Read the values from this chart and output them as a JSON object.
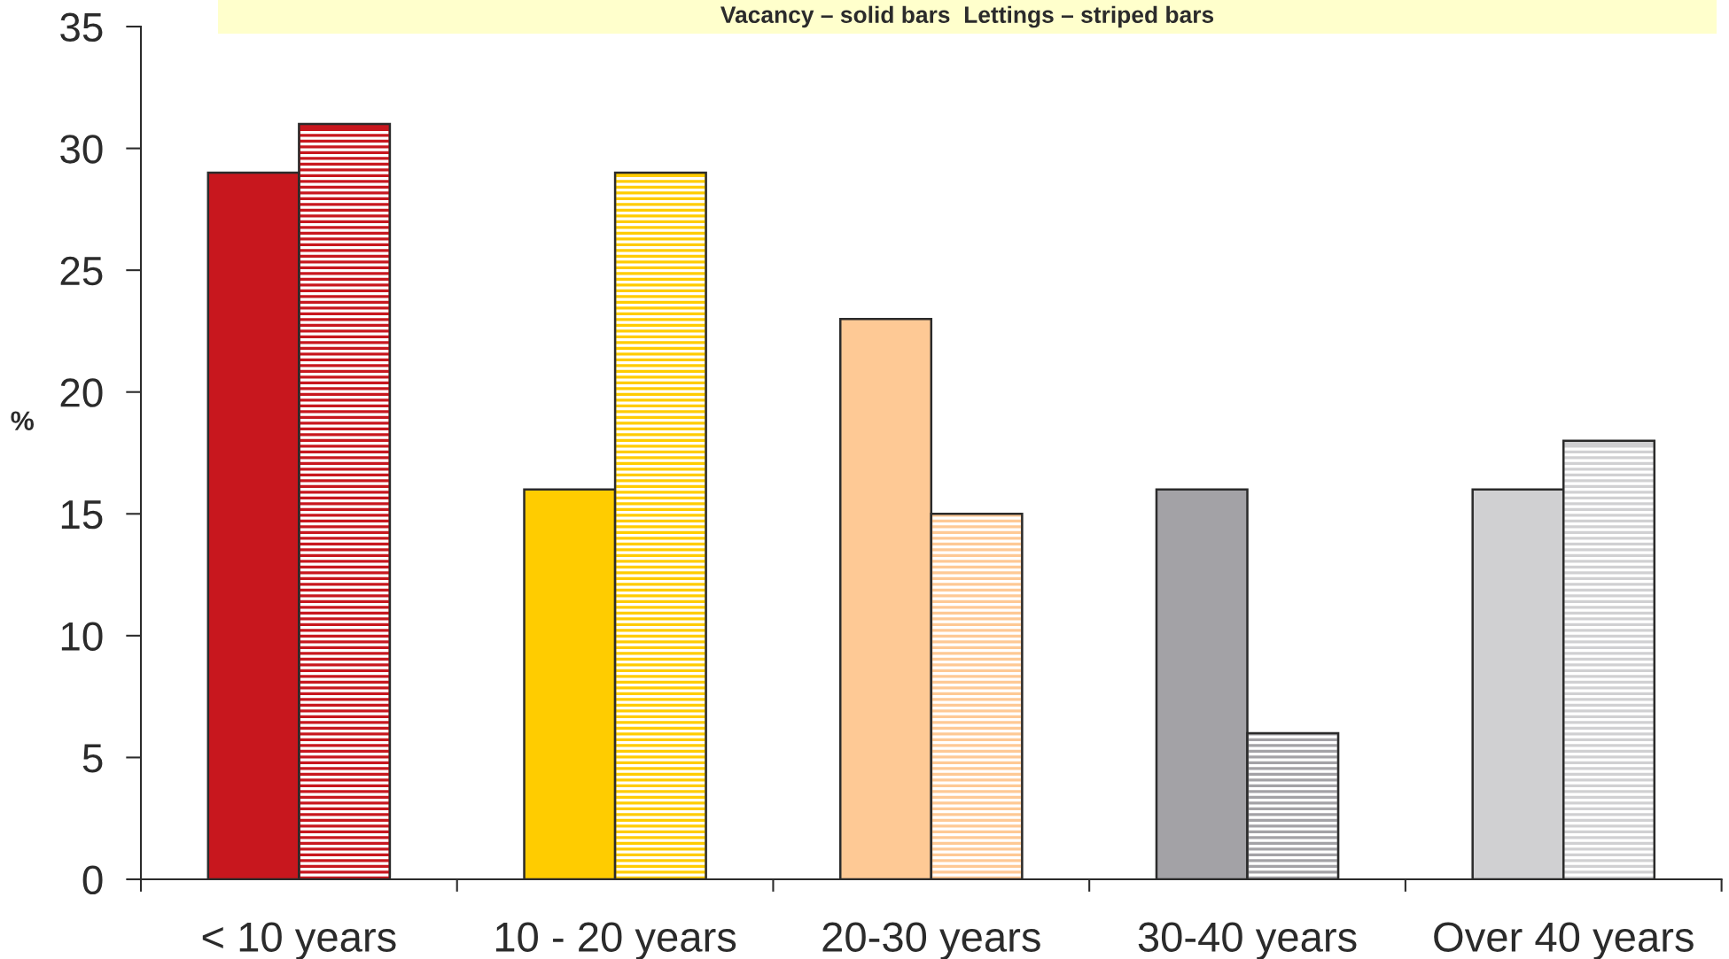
{
  "chart_data": {
    "type": "bar",
    "title": "Vacancy – solid bars  Lettings – striped bars",
    "ylabel": "%",
    "categories": [
      "< 10 years",
      "10 - 20 years",
      "20-30 years",
      "30-40 years",
      "Over 40 years"
    ],
    "series": [
      {
        "colors": [
          "#c8171e",
          "#ffcc00",
          "#fec995",
          "#a3a2a6",
          "#d0d0d2"
        ],
        "values": [
          29,
          16,
          23,
          16,
          16
        ]
      },
      {
        "colors": [
          "#c8171e",
          "#ffcc00",
          "#fec995",
          "#a3a2a6",
          "#d0d0d2"
        ],
        "values": [
          31,
          29,
          15,
          6,
          18
        ]
      }
    ],
    "ylim": [
      0,
      35
    ],
    "yticks": [
      0,
      5,
      10,
      15,
      20,
      25,
      30,
      35
    ]
  }
}
